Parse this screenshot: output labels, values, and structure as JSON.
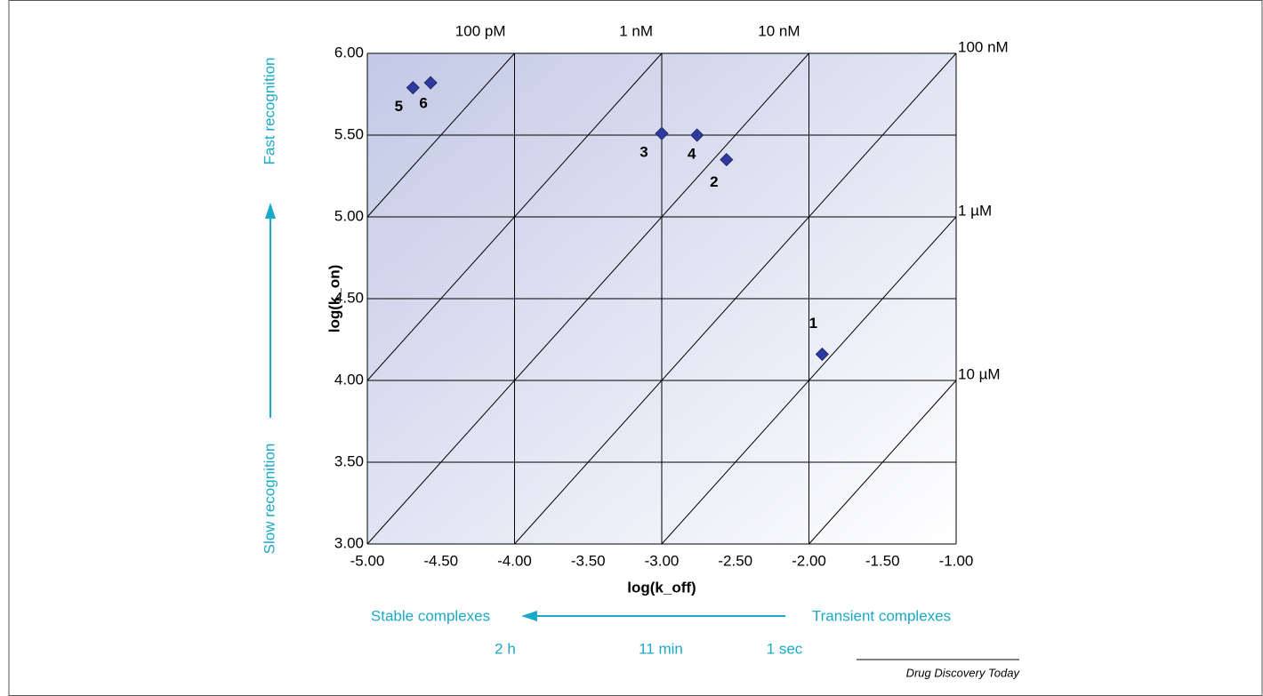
{
  "chart_data": {
    "type": "scatter",
    "x_label": "log(k_off)",
    "y_label": "log(k_on)",
    "xlim": [
      -5,
      -1
    ],
    "ylim": [
      3,
      6
    ],
    "xticks": [
      {
        "value": -5,
        "label": "-5.00"
      },
      {
        "value": -4.5,
        "label": "-4.50"
      },
      {
        "value": -4,
        "label": "-4.00"
      },
      {
        "value": -3.5,
        "label": "-3.50"
      },
      {
        "value": -3,
        "label": "-3.00"
      },
      {
        "value": -2.5,
        "label": "-2.50"
      },
      {
        "value": -2,
        "label": "-2.00"
      },
      {
        "value": -1.5,
        "label": "-1.50"
      },
      {
        "value": -1,
        "label": "-1.00"
      }
    ],
    "yticks": [
      {
        "value": 3,
        "label": "3.00"
      },
      {
        "value": 3.5,
        "label": "3.50"
      },
      {
        "value": 4,
        "label": "4.00"
      },
      {
        "value": 4.5,
        "label": "4.50"
      },
      {
        "value": 5,
        "label": "5.00"
      },
      {
        "value": 5.5,
        "label": "5.50"
      },
      {
        "value": 6,
        "label": "6.00"
      }
    ],
    "grid": true,
    "series": [
      {
        "color": "#2e3a9e",
        "x": [
          -1.91,
          -2.56,
          -3.0,
          -2.76,
          -4.69,
          -4.57
        ],
        "values": [
          4.16,
          5.35,
          5.51,
          5.5,
          5.79,
          5.82
        ],
        "point_labels": [
          "1",
          "2",
          "3",
          "4",
          "5",
          "6"
        ]
      }
    ],
    "kd_lines": [
      {
        "value": -10,
        "label": "100 pM"
      },
      {
        "value": -9,
        "label": "1 nM"
      },
      {
        "value": -8,
        "label": "10 nM"
      },
      {
        "value": -7,
        "label": "100 nM"
      },
      {
        "value": -6,
        "label": "1 µM"
      },
      {
        "value": -5,
        "label": "10 µM"
      }
    ],
    "y_annotations": [
      "Slow recognition",
      "Fast recognition"
    ],
    "x_annotations": [
      "Stable complexes",
      "Transient complexes"
    ],
    "time_labels": [
      "2 h",
      "11 min",
      "1 sec"
    ],
    "source": "Drug Discovery Today"
  }
}
